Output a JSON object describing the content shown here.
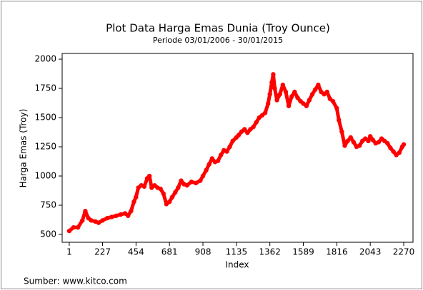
{
  "chart_data": {
    "type": "scatter",
    "title": "Plot Data Harga Emas Dunia (Troy Ounce)",
    "subtitle": "Periode 03/01/2006 - 30/01/2015",
    "x_label": "Index",
    "y_label": "Harga Emas (Troy)",
    "source": "Sumber: www.kitco.com",
    "color": "#ff0000",
    "xlim": [
      -47,
      2333
    ],
    "ylim": [
      433,
      2049
    ],
    "xticks": [
      1,
      227,
      454,
      681,
      908,
      1135,
      1362,
      1589,
      1816,
      2043,
      2270
    ],
    "yticks": [
      500,
      750,
      1000,
      1250,
      1500,
      1750,
      2000
    ],
    "x": [
      1,
      30,
      60,
      90,
      110,
      130,
      150,
      180,
      200,
      227,
      260,
      290,
      320,
      350,
      380,
      400,
      420,
      440,
      454,
      470,
      490,
      510,
      530,
      545,
      560,
      580,
      600,
      620,
      640,
      660,
      681,
      700,
      720,
      740,
      760,
      780,
      800,
      830,
      860,
      890,
      908,
      930,
      950,
      970,
      990,
      1010,
      1030,
      1050,
      1070,
      1090,
      1110,
      1135,
      1150,
      1170,
      1190,
      1210,
      1230,
      1250,
      1270,
      1290,
      1310,
      1330,
      1350,
      1362,
      1375,
      1385,
      1395,
      1410,
      1430,
      1450,
      1470,
      1490,
      1510,
      1530,
      1550,
      1570,
      1589,
      1610,
      1630,
      1650,
      1670,
      1690,
      1710,
      1730,
      1750,
      1770,
      1790,
      1816,
      1830,
      1850,
      1870,
      1890,
      1910,
      1930,
      1950,
      1970,
      1990,
      2010,
      2030,
      2043,
      2060,
      2080,
      2100,
      2120,
      2140,
      2160,
      2180,
      2200,
      2220,
      2240,
      2260,
      2270
    ],
    "y": [
      530,
      560,
      560,
      620,
      700,
      640,
      620,
      610,
      600,
      620,
      640,
      650,
      660,
      670,
      680,
      660,
      700,
      780,
      820,
      900,
      920,
      910,
      980,
      1000,
      900,
      920,
      900,
      890,
      850,
      760,
      780,
      820,
      860,
      900,
      960,
      930,
      920,
      950,
      940,
      960,
      1000,
      1050,
      1100,
      1150,
      1120,
      1130,
      1180,
      1220,
      1210,
      1250,
      1300,
      1330,
      1350,
      1380,
      1400,
      1370,
      1400,
      1420,
      1460,
      1500,
      1520,
      1540,
      1620,
      1700,
      1800,
      1870,
      1750,
      1650,
      1700,
      1780,
      1720,
      1600,
      1680,
      1720,
      1670,
      1640,
      1620,
      1600,
      1650,
      1700,
      1740,
      1780,
      1720,
      1700,
      1720,
      1660,
      1640,
      1580,
      1480,
      1380,
      1260,
      1300,
      1330,
      1290,
      1250,
      1260,
      1300,
      1320,
      1300,
      1340,
      1310,
      1280,
      1290,
      1320,
      1300,
      1280,
      1240,
      1210,
      1180,
      1200,
      1250,
      1270
    ]
  }
}
